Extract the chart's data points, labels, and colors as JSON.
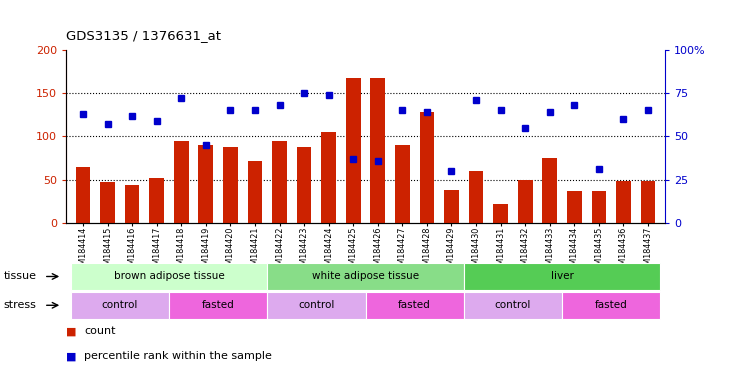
{
  "title": "GDS3135 / 1376631_at",
  "samples": [
    "GSM184414",
    "GSM184415",
    "GSM184416",
    "GSM184417",
    "GSM184418",
    "GSM184419",
    "GSM184420",
    "GSM184421",
    "GSM184422",
    "GSM184423",
    "GSM184424",
    "GSM184425",
    "GSM184426",
    "GSM184427",
    "GSM184428",
    "GSM184429",
    "GSM184430",
    "GSM184431",
    "GSM184432",
    "GSM184433",
    "GSM184434",
    "GSM184435",
    "GSM184436",
    "GSM184437"
  ],
  "counts": [
    65,
    47,
    44,
    52,
    95,
    90,
    88,
    72,
    95,
    88,
    105,
    168,
    168,
    90,
    128,
    38,
    60,
    22,
    50,
    75,
    37,
    37,
    48,
    48
  ],
  "percentile_ranks": [
    63,
    57,
    62,
    59,
    72,
    45,
    65,
    65,
    68,
    75,
    74,
    37,
    36,
    65,
    64,
    30,
    71,
    65,
    55,
    64,
    68,
    31,
    60,
    65
  ],
  "bar_color": "#cc2200",
  "dot_color": "#0000cc",
  "left_ylim": [
    0,
    200
  ],
  "left_yticks": [
    0,
    50,
    100,
    150,
    200
  ],
  "right_ylim": [
    0,
    100
  ],
  "right_yticks": [
    0,
    25,
    50,
    75,
    100
  ],
  "right_yticklabels": [
    "0",
    "25",
    "50",
    "75",
    "100%"
  ],
  "left_tick_color": "#cc2200",
  "right_tick_color": "#0000cc",
  "hline_values": [
    50,
    100,
    150
  ],
  "tissue_groups": [
    {
      "label": "brown adipose tissue",
      "start": 0,
      "end": 7,
      "color": "#ccffcc"
    },
    {
      "label": "white adipose tissue",
      "start": 8,
      "end": 15,
      "color": "#88dd88"
    },
    {
      "label": "liver",
      "start": 16,
      "end": 23,
      "color": "#55cc55"
    }
  ],
  "stress_groups": [
    {
      "label": "control",
      "start": 0,
      "end": 3,
      "color": "#ddaaee"
    },
    {
      "label": "fasted",
      "start": 4,
      "end": 7,
      "color": "#ee66dd"
    },
    {
      "label": "control",
      "start": 8,
      "end": 11,
      "color": "#ddaaee"
    },
    {
      "label": "fasted",
      "start": 12,
      "end": 15,
      "color": "#ee66dd"
    },
    {
      "label": "control",
      "start": 16,
      "end": 19,
      "color": "#ddaaee"
    },
    {
      "label": "fasted",
      "start": 20,
      "end": 23,
      "color": "#ee66dd"
    }
  ],
  "legend_count_label": "count",
  "legend_pct_label": "percentile rank within the sample",
  "tissue_label": "tissue",
  "stress_label": "stress",
  "bg_color": "#ffffff",
  "plot_bg_color": "#ffffff"
}
